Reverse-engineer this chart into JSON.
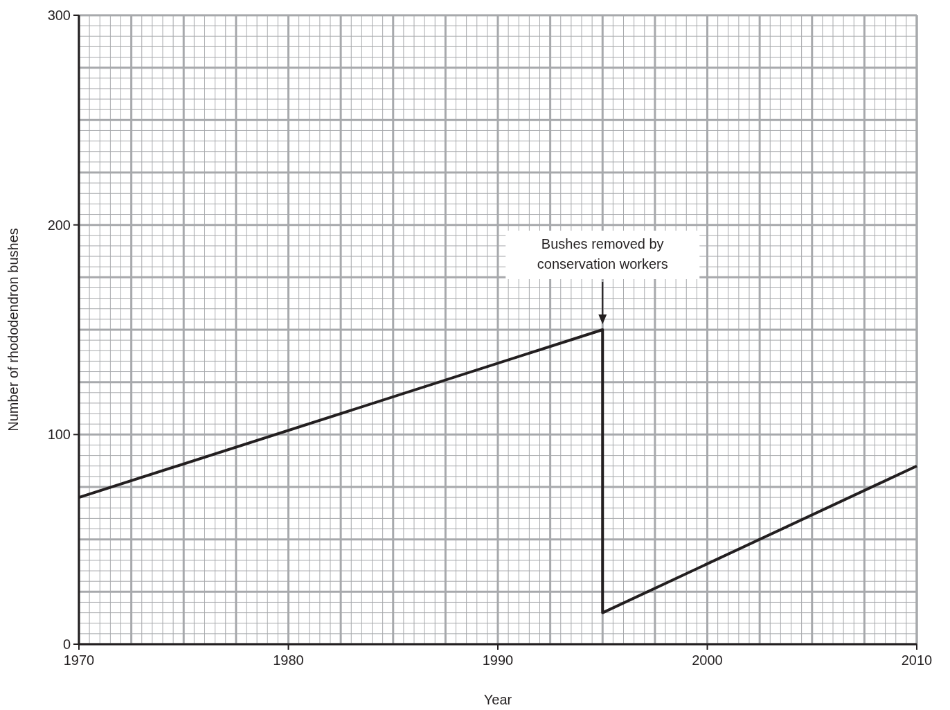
{
  "chart_data": {
    "type": "line",
    "xlabel": "Year",
    "ylabel": "Number of rhododendron bushes",
    "x": [
      1970,
      1995,
      1995,
      2010
    ],
    "series": [
      {
        "color": "#231f20",
        "values": [
          70,
          150,
          15,
          85
        ]
      }
    ],
    "xlim": [
      1970,
      2010
    ],
    "xticks": [
      1970,
      1980,
      1990,
      2000,
      2010
    ],
    "ylim": [
      0,
      300
    ],
    "yticks": [
      0,
      100,
      200,
      300
    ],
    "grid": true,
    "marker": "none",
    "line_style": "solid",
    "annotations": [
      "Bushes removed by\nconservation workers"
    ]
  }
}
